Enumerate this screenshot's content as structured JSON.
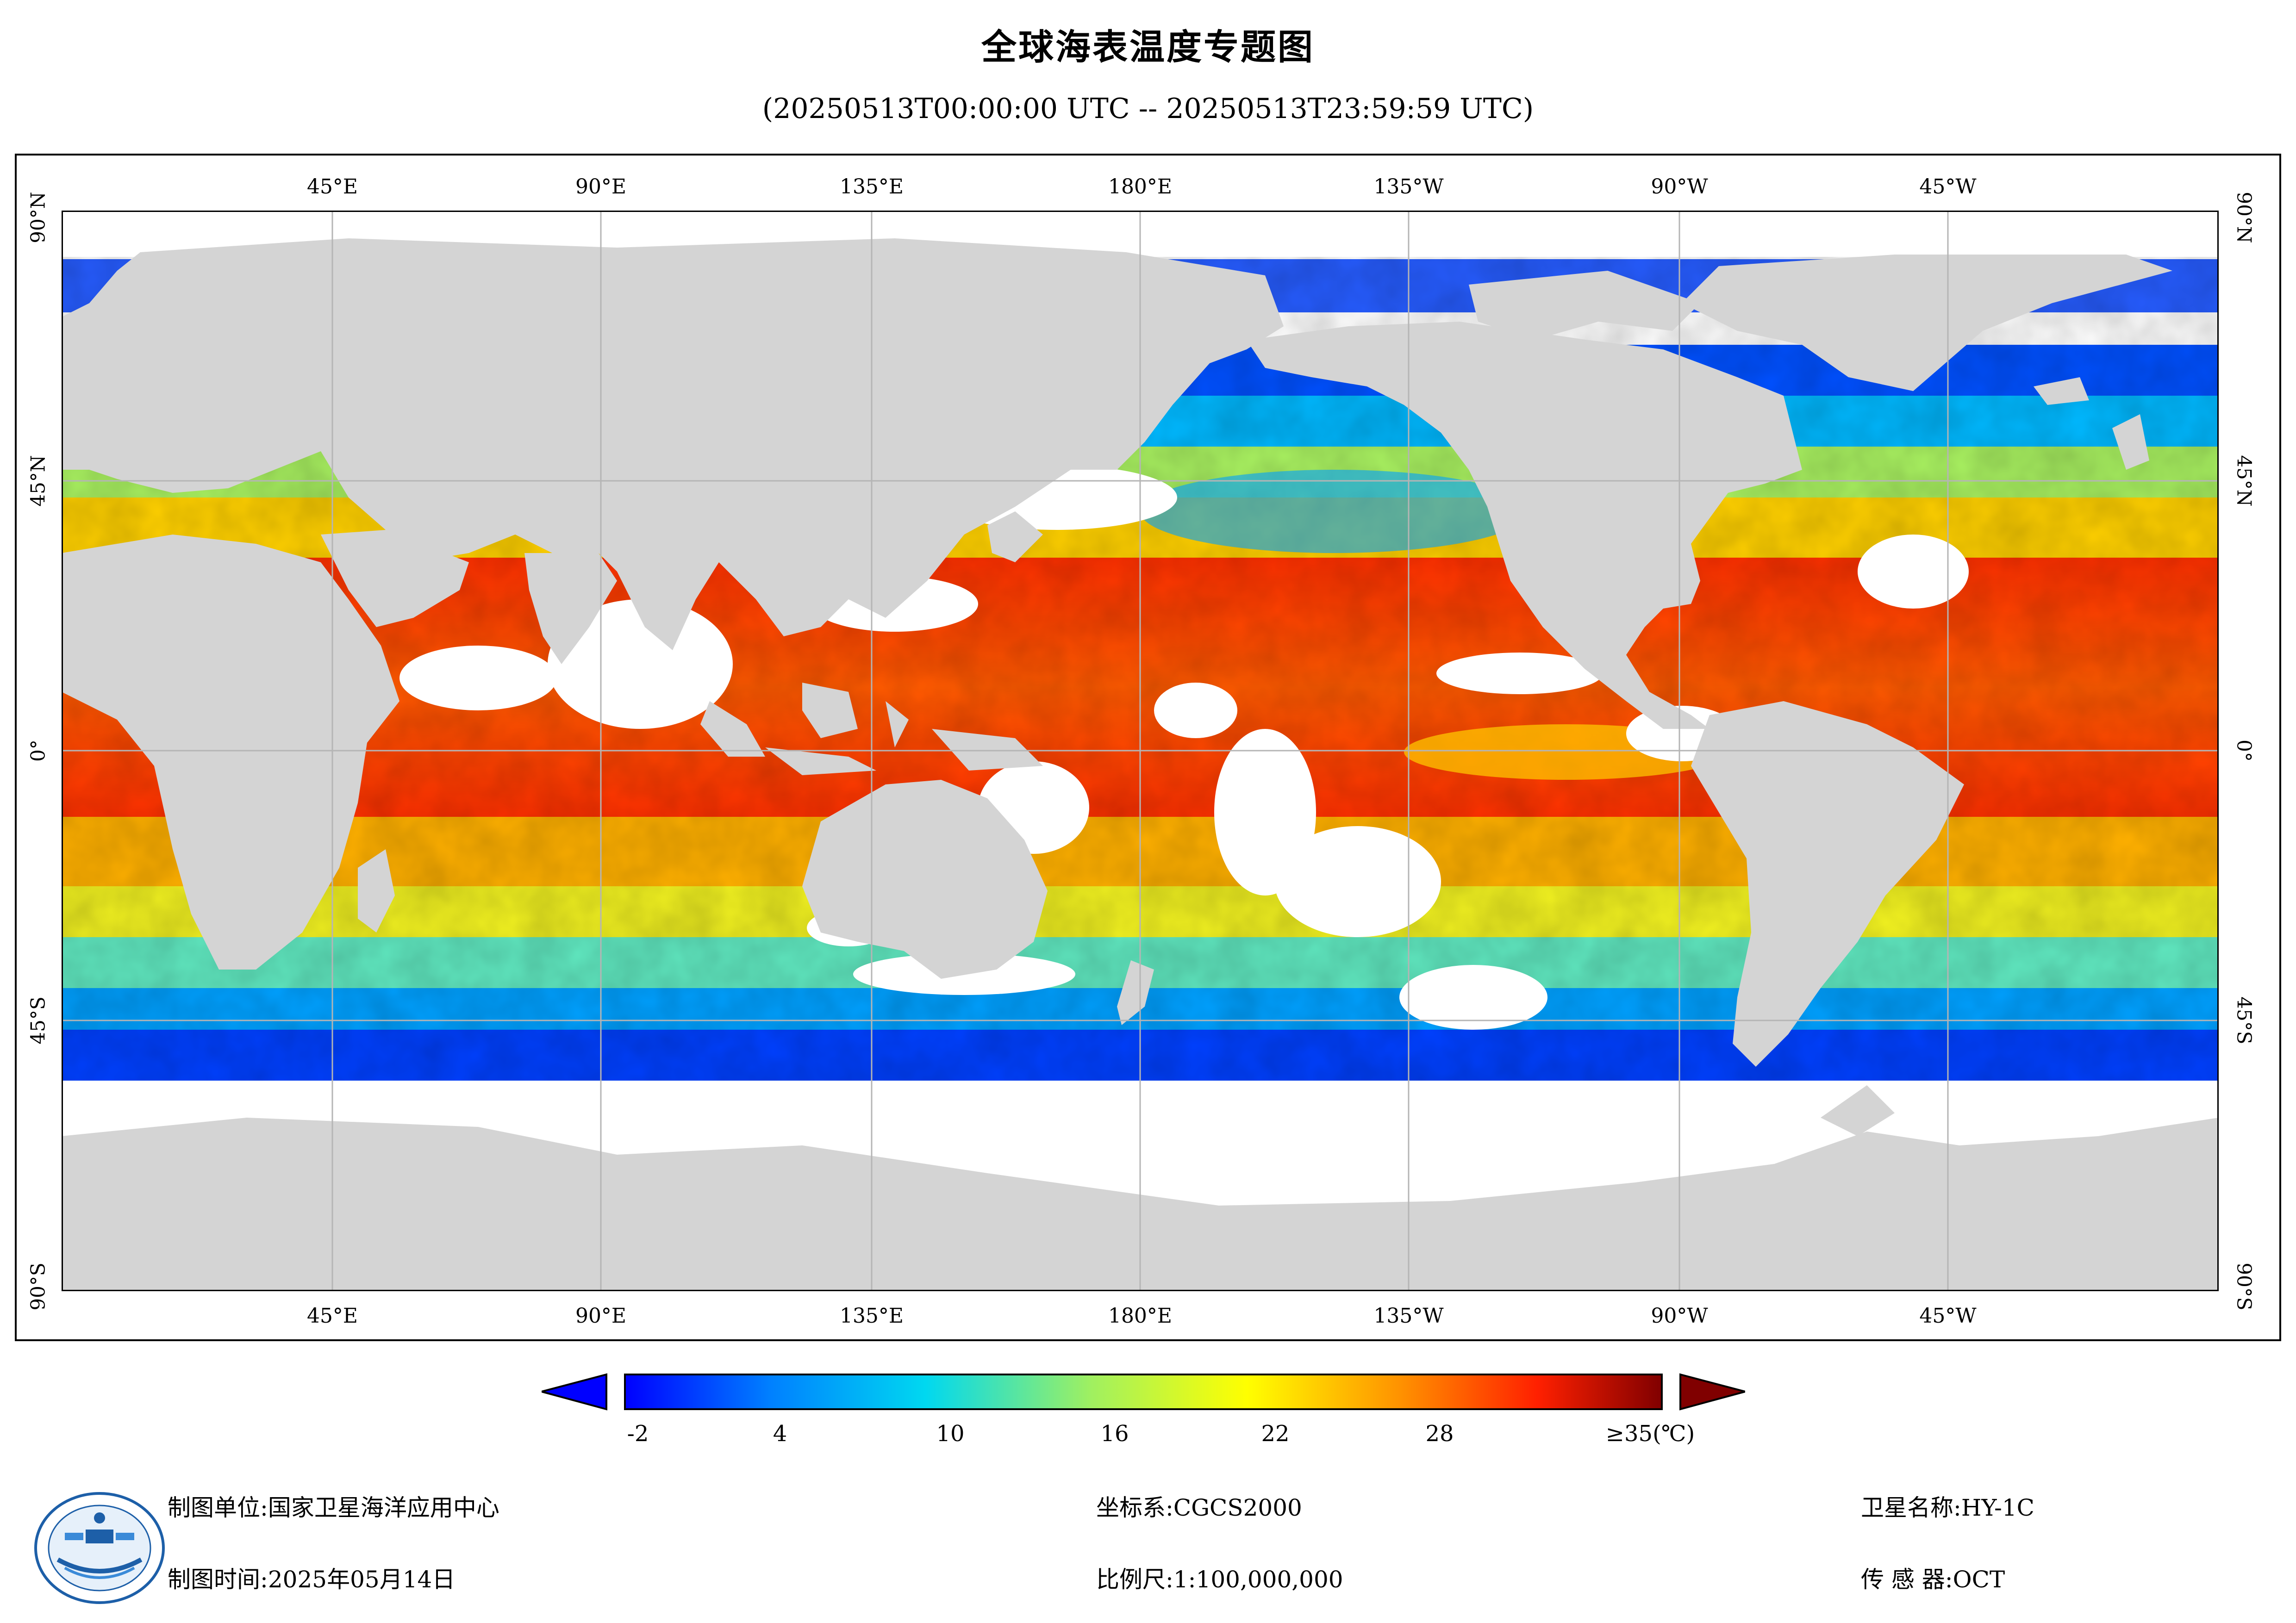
{
  "title": "全球海表温度专题图",
  "time_range": "(20250513T00:00:00 UTC -- 20250513T23:59:59 UTC)",
  "map": {
    "lon_labels": [
      "45°E",
      "90°E",
      "135°E",
      "180°E",
      "135°W",
      "90°W",
      "45°W"
    ],
    "lat_labels": [
      "90°N",
      "45°N",
      "0°",
      "45°S",
      "90°S"
    ],
    "land_color": "#d4d4d4",
    "no_data_color": "#ffffff",
    "grid_color": "#b5b5b5"
  },
  "colorbar": {
    "labels": [
      "-2",
      "4",
      "10",
      "16",
      "22",
      "28",
      "≥35(℃)"
    ],
    "palette": [
      "#0000ff",
      "#0080ff",
      "#00d8f0",
      "#a0f060",
      "#ffff00",
      "#ff9000",
      "#ff2000",
      "#800000"
    ]
  },
  "footer": {
    "org_label": "制图单位:",
    "org_value": "国家卫星海洋应用中心",
    "date_label": "制图时间:",
    "date_value": "2025年05月14日",
    "crs_label": "坐标系:",
    "crs_value": "CGCS2000",
    "scale_label": "比例尺:",
    "scale_value": "1:100,000,000",
    "satellite_label": "卫星名称:",
    "satellite_value": "HY-1C",
    "sensor_label": "传 感 器:",
    "sensor_value": "OCT"
  },
  "icons": {
    "logo": "nsoas-logo"
  }
}
